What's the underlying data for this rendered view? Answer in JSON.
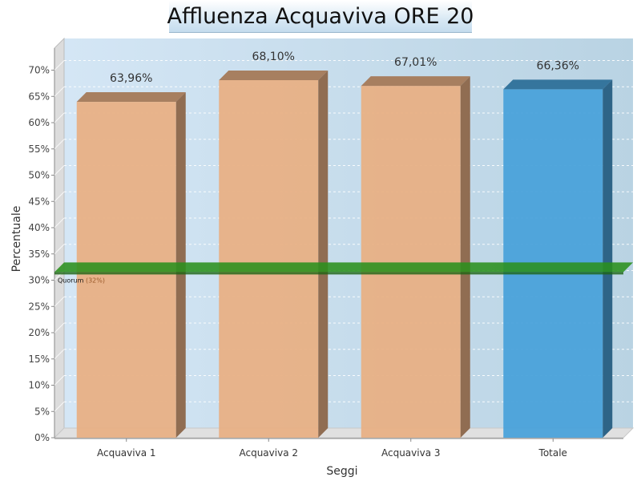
{
  "title": "Affluenza Acquaviva ORE 20",
  "colors": {
    "bar_section": "#e8b085",
    "bar_total": "#4aa2da",
    "quorum_line": "#2a8f1c"
  },
  "chart_data": {
    "type": "bar",
    "title": "Affluenza Acquaviva ORE 20",
    "xlabel": "Seggi",
    "ylabel": "Percentuale",
    "categories": [
      "Acquaviva 1",
      "Acquaviva 2",
      "Acquaviva 3",
      "Totale"
    ],
    "values": [
      63.96,
      68.1,
      67.01,
      66.36
    ],
    "data_labels": [
      "63,96%",
      "68,10%",
      "67,01%",
      "66,36%"
    ],
    "bar_kinds": [
      "section",
      "section",
      "section",
      "total"
    ],
    "ylim": [
      0,
      75
    ],
    "yticks": [
      0,
      5,
      10,
      15,
      20,
      25,
      30,
      35,
      40,
      45,
      50,
      55,
      60,
      65,
      70
    ],
    "ytick_labels": [
      "0%",
      "5%",
      "10%",
      "15%",
      "20%",
      "25%",
      "30%",
      "35%",
      "40%",
      "45%",
      "50%",
      "55%",
      "60%",
      "65%",
      "70%"
    ],
    "grid": true,
    "style": "3d",
    "reference_line": {
      "value": 32,
      "name": "Quorum",
      "label": "(32%)"
    }
  }
}
